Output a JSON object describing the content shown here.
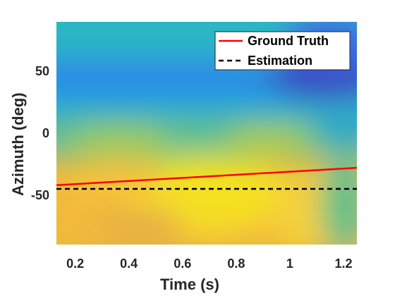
{
  "chart_data": {
    "type": "heatmap",
    "xlabel": "Time (s)",
    "ylabel": "Azimuth (deg)",
    "xlim": [
      0.13,
      1.25
    ],
    "ylim": [
      -90,
      90
    ],
    "xticks": [
      0.2,
      0.4,
      0.6,
      0.8,
      1,
      1.2
    ],
    "xtick_labels": [
      "0.2",
      "0.4",
      "0.6",
      "0.8",
      "1",
      "1.2"
    ],
    "yticks": [
      -50,
      0,
      50
    ],
    "ytick_labels": [
      "-50",
      "0",
      "50"
    ],
    "colormap": "parula",
    "grid": false,
    "legend_position": "top-right",
    "series": [
      {
        "name": "Ground Truth",
        "style": "solid",
        "color": "#ff0000",
        "x": [
          0.13,
          1.25
        ],
        "y": [
          -42,
          -28
        ]
      },
      {
        "name": "Estimation",
        "style": "dashed",
        "color": "#000000",
        "x": [
          0.13,
          1.25
        ],
        "y": [
          -45,
          -45
        ]
      }
    ]
  }
}
